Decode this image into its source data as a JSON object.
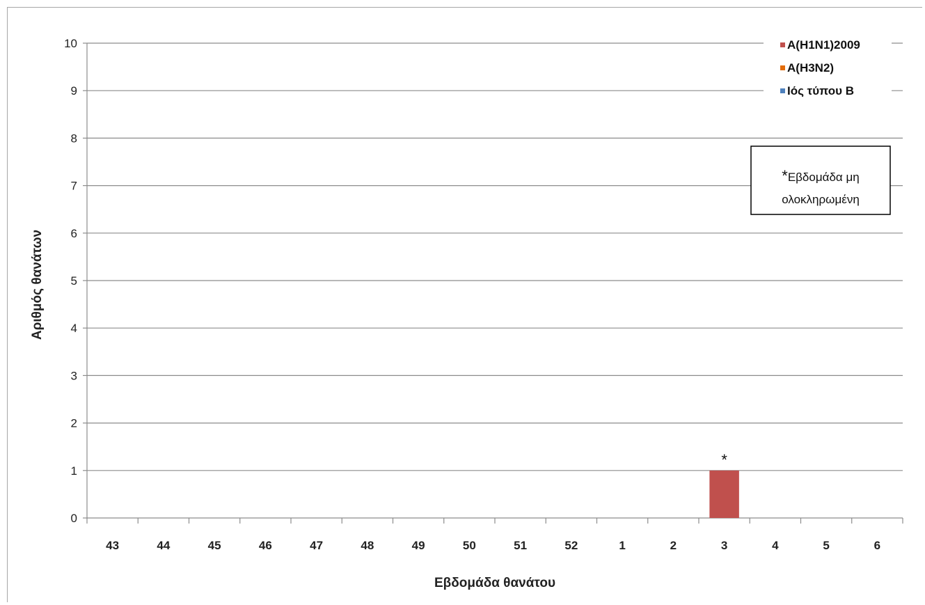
{
  "chart_data": {
    "type": "bar",
    "stacked": true,
    "title": "",
    "xlabel": "Εβδομάδα θανάτου",
    "ylabel": "Αριθμός θανάτων",
    "ylim": [
      0,
      10
    ],
    "yticks": [
      0,
      1,
      2,
      3,
      4,
      5,
      6,
      7,
      8,
      9,
      10
    ],
    "grid": true,
    "legend_position": "top-right",
    "categories": [
      "43",
      "44",
      "45",
      "46",
      "47",
      "48",
      "49",
      "50",
      "51",
      "52",
      "1",
      "2",
      "3",
      "4",
      "5",
      "6"
    ],
    "series": [
      {
        "name": "A(H1N1)2009",
        "color": "#c0504d",
        "values": [
          0,
          0,
          0,
          0,
          0,
          0,
          0,
          0,
          0,
          0,
          0,
          0,
          1,
          0,
          0,
          0
        ]
      },
      {
        "name": "A(H3N2)",
        "color": "#e36c09",
        "values": [
          0,
          0,
          0,
          0,
          0,
          0,
          0,
          0,
          0,
          0,
          0,
          0,
          0,
          0,
          0,
          0
        ]
      },
      {
        "name": "Ιός τύπου Β",
        "color": "#4f81bd",
        "values": [
          0,
          0,
          0,
          0,
          0,
          0,
          0,
          0,
          0,
          0,
          0,
          0,
          0,
          0,
          0,
          0
        ]
      }
    ],
    "annotations": [
      {
        "category": "3",
        "text": "*"
      }
    ],
    "note": {
      "star": "*",
      "line1": "Εβδομάδα μη",
      "line2": "ολοκληρωμένη"
    }
  }
}
